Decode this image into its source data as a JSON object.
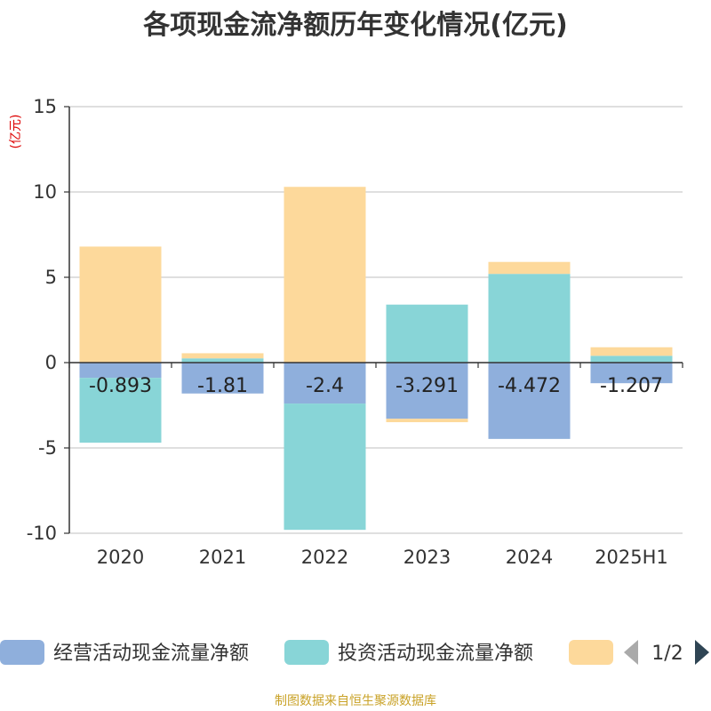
{
  "chart_data": {
    "type": "bar",
    "stacked": true,
    "title": "各项现金流净额历年变化情况(亿元)",
    "ylabel": "(亿元)",
    "xlabel": "",
    "categories": [
      "2020",
      "2021",
      "2022",
      "2023",
      "2024",
      "2025H1"
    ],
    "ylim": [
      -10,
      15
    ],
    "yticks": [
      -10,
      -5,
      0,
      5,
      10,
      15
    ],
    "grid": true,
    "legend_position": "bottom",
    "series": [
      {
        "name": "经营活动现金流量净额",
        "color": "#8fafdc",
        "values": [
          -0.893,
          -1.81,
          -2.4,
          -3.291,
          -4.472,
          -1.207
        ],
        "data_labels": [
          "-0.893",
          "-1.81",
          "-2.4",
          "-3.291",
          "-4.472",
          "-1.207"
        ]
      },
      {
        "name": "投资活动现金流量净额",
        "color": "#88d5d7",
        "values": [
          -3.8,
          0.25,
          -7.4,
          3.4,
          5.2,
          0.4
        ]
      },
      {
        "name": "",
        "color": "#fdd99b",
        "values": [
          6.8,
          0.3,
          10.3,
          -0.2,
          0.7,
          0.5
        ]
      }
    ]
  },
  "legend": {
    "page_indicator": "1/2"
  },
  "footer": {
    "source_text": "制图数据来自恒生聚源数据库"
  }
}
